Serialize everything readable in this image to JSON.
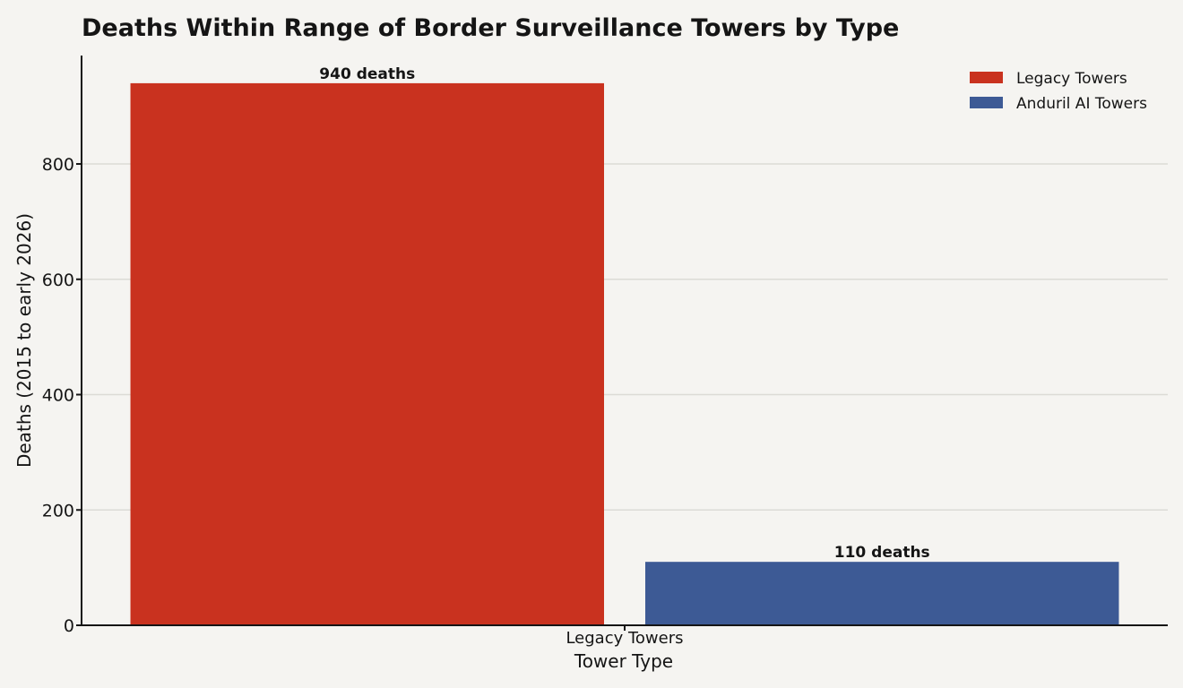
{
  "chart_data": {
    "type": "bar",
    "title": "Deaths Within Range of Border Surveillance Towers by Type",
    "xlabel": "Tower Type",
    "ylabel": "Deaths (2015 to early 2026)",
    "categories": [
      "Legacy Towers"
    ],
    "series": [
      {
        "name": "Legacy Towers",
        "values": [
          940
        ],
        "color": "#c9321f",
        "label": "940 deaths"
      },
      {
        "name": "Anduril AI Towers",
        "values": [
          110
        ],
        "color": "#3d5a95",
        "label": "110 deaths"
      }
    ],
    "ylim": [
      0,
      988
    ],
    "yticks": [
      0,
      200,
      400,
      600,
      800
    ],
    "grid": "horizontal",
    "legend": "top-right"
  }
}
